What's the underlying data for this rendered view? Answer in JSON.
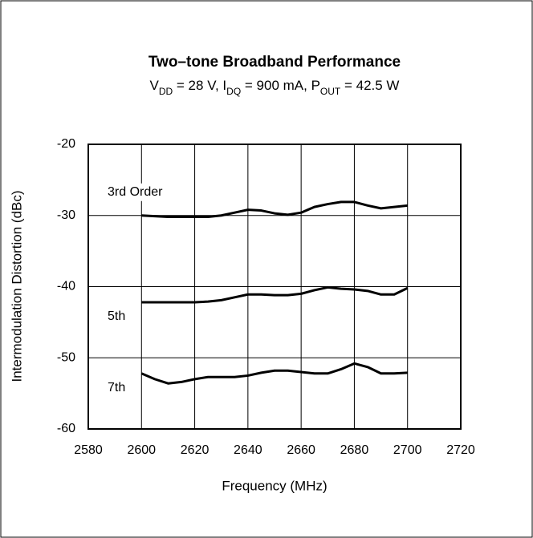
{
  "chart_data": {
    "type": "line",
    "title": "Two–tone Broadband Performance",
    "subtitle": [
      {
        "text": "V",
        "sub": false
      },
      {
        "text": "DD",
        "sub": true
      },
      {
        "text": " = 28 V, I",
        "sub": false
      },
      {
        "text": "DQ",
        "sub": true
      },
      {
        "text": " = 900 mA,  P",
        "sub": false
      },
      {
        "text": "OUT",
        "sub": true
      },
      {
        "text": " = 42.5 W",
        "sub": false
      }
    ],
    "x_label": "Frequency (MHz)",
    "y_label": "Intermodulation Distortion (dBc)",
    "x": [
      2600,
      2605,
      2610,
      2615,
      2620,
      2625,
      2630,
      2635,
      2640,
      2645,
      2650,
      2655,
      2660,
      2665,
      2670,
      2675,
      2680,
      2685,
      2690,
      2695,
      2700
    ],
    "series": [
      {
        "name": "3rd Order",
        "color": "#000000",
        "values": [
          -30.0,
          -30.1,
          -30.2,
          -30.2,
          -30.2,
          -30.2,
          -30.0,
          -29.6,
          -29.2,
          -29.3,
          -29.7,
          -29.9,
          -29.6,
          -28.8,
          -28.4,
          -28.1,
          -28.1,
          -28.6,
          -29.0,
          -28.8,
          -28.6
        ]
      },
      {
        "name": "5th",
        "color": "#000000",
        "values": [
          -42.2,
          -42.2,
          -42.2,
          -42.2,
          -42.2,
          -42.1,
          -41.9,
          -41.5,
          -41.1,
          -41.1,
          -41.2,
          -41.2,
          -41.0,
          -40.5,
          -40.1,
          -40.3,
          -40.4,
          -40.6,
          -41.1,
          -41.1,
          -40.2
        ]
      },
      {
        "name": "7th",
        "color": "#000000",
        "values": [
          -52.2,
          -53.0,
          -53.6,
          -53.4,
          -53.0,
          -52.7,
          -52.7,
          -52.7,
          -52.5,
          -52.1,
          -51.8,
          -51.8,
          -52.0,
          -52.2,
          -52.2,
          -51.6,
          -50.8,
          -51.3,
          -52.2,
          -52.2,
          -52.1
        ]
      }
    ],
    "xlim": [
      2580,
      2720
    ],
    "xticks": [
      2580,
      2600,
      2620,
      2640,
      2660,
      2680,
      2700,
      2720
    ],
    "ylim": [
      -60,
      -20
    ],
    "yticks": [
      -60,
      -50,
      -40,
      -30,
      -20
    ],
    "grid": true
  }
}
